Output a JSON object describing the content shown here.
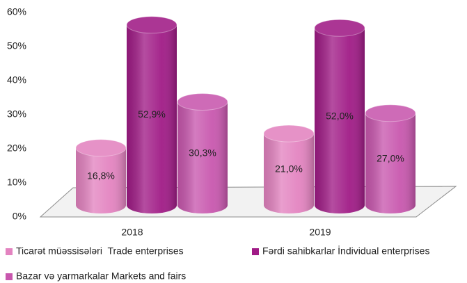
{
  "chart_data": {
    "type": "bar",
    "categories": [
      "2018",
      "2019"
    ],
    "series": [
      {
        "name": "Ticarət müəssisələri  Trade enterprises",
        "color": "#e383c0",
        "values": [
          16.8,
          21.0
        ],
        "value_labels": [
          "16,8%",
          "21,0%"
        ]
      },
      {
        "name": "Fərdi sahibkarlar İndividual enterprises",
        "color": "#a01b86",
        "values": [
          52.9,
          52.0
        ],
        "value_labels": [
          "52,9%",
          "52,0%"
        ]
      },
      {
        "name": "Bazar və yarmarkalar Markets and fairs",
        "color": "#c857ae",
        "values": [
          30.3,
          27.0
        ],
        "value_labels": [
          "30,3%",
          "27,0%"
        ]
      }
    ],
    "ylim": [
      0,
      60
    ],
    "yticks": [
      {
        "value": 0,
        "label": "0%"
      },
      {
        "value": 10,
        "label": "10%"
      },
      {
        "value": 20,
        "label": "20%"
      },
      {
        "value": 30,
        "label": "30%"
      },
      {
        "value": 40,
        "label": "40%"
      },
      {
        "value": 50,
        "label": "50%"
      },
      {
        "value": 60,
        "label": "60%"
      }
    ],
    "grid": false
  }
}
